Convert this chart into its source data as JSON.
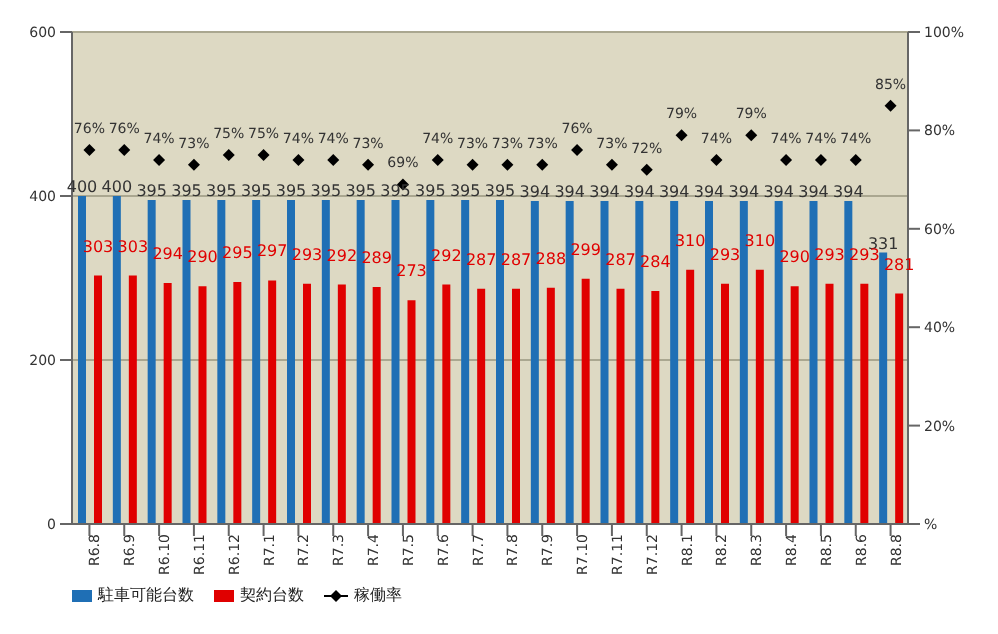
{
  "chart_data": {
    "type": "bar",
    "categories": [
      "R6.8",
      "R6.9",
      "R6.10",
      "R6.11",
      "R6.12",
      "R7.1",
      "R7.2",
      "R7.3",
      "R7.4",
      "R7.5",
      "R7.6",
      "R7.7",
      "R7.8",
      "R7.9",
      "R7.10",
      "R7.11",
      "R7.12",
      "R8.1",
      "R8.2",
      "R8.3",
      "R8.4",
      "R8.5",
      "R8.6",
      "R8.8"
    ],
    "series": [
      {
        "name": "駐車可能台数",
        "color": "#1f6fb5",
        "values": [
          400,
          400,
          395,
          395,
          395,
          395,
          395,
          395,
          395,
          395,
          395,
          395,
          395,
          394,
          394,
          394,
          394,
          394,
          394,
          394,
          394,
          394,
          394,
          331
        ]
      },
      {
        "name": "契約台数",
        "color": "#e00000",
        "values": [
          303,
          303,
          294,
          290,
          295,
          297,
          293,
          292,
          289,
          273,
          292,
          287,
          287,
          288,
          299,
          287,
          284,
          310,
          293,
          310,
          290,
          293,
          293,
          281
        ]
      },
      {
        "name": "稼働率",
        "type": "scatter",
        "axis": "y2",
        "color": "#000000",
        "marker": "diamond",
        "values": [
          76,
          76,
          74,
          73,
          75,
          75,
          74,
          74,
          73,
          69,
          74,
          73,
          73,
          73,
          76,
          73,
          72,
          79,
          74,
          79,
          74,
          74,
          74,
          85
        ],
        "value_labels": [
          "76%",
          "76%",
          "74%",
          "73%",
          "75%",
          "75%",
          "74%",
          "74%",
          "73%",
          "69%",
          "74%",
          "73%",
          "73%",
          "73%",
          "76%",
          "73%",
          "72%",
          "79%",
          "74%",
          "79%",
          "74%",
          "74%",
          "74%",
          "85%"
        ]
      }
    ],
    "ylim": [
      0,
      600
    ],
    "yticks": [
      0,
      200,
      400,
      600
    ],
    "y2lim": [
      0,
      100
    ],
    "y2ticks": [
      {
        "value": 0,
        "label": "%"
      },
      {
        "value": 20,
        "label": "20%"
      },
      {
        "value": 40,
        "label": "40%"
      },
      {
        "value": 60,
        "label": "60%"
      },
      {
        "value": 80,
        "label": "80%"
      },
      {
        "value": 100,
        "label": "100%"
      }
    ],
    "grid": "y",
    "legend": "bottom left",
    "data_labels": true
  }
}
